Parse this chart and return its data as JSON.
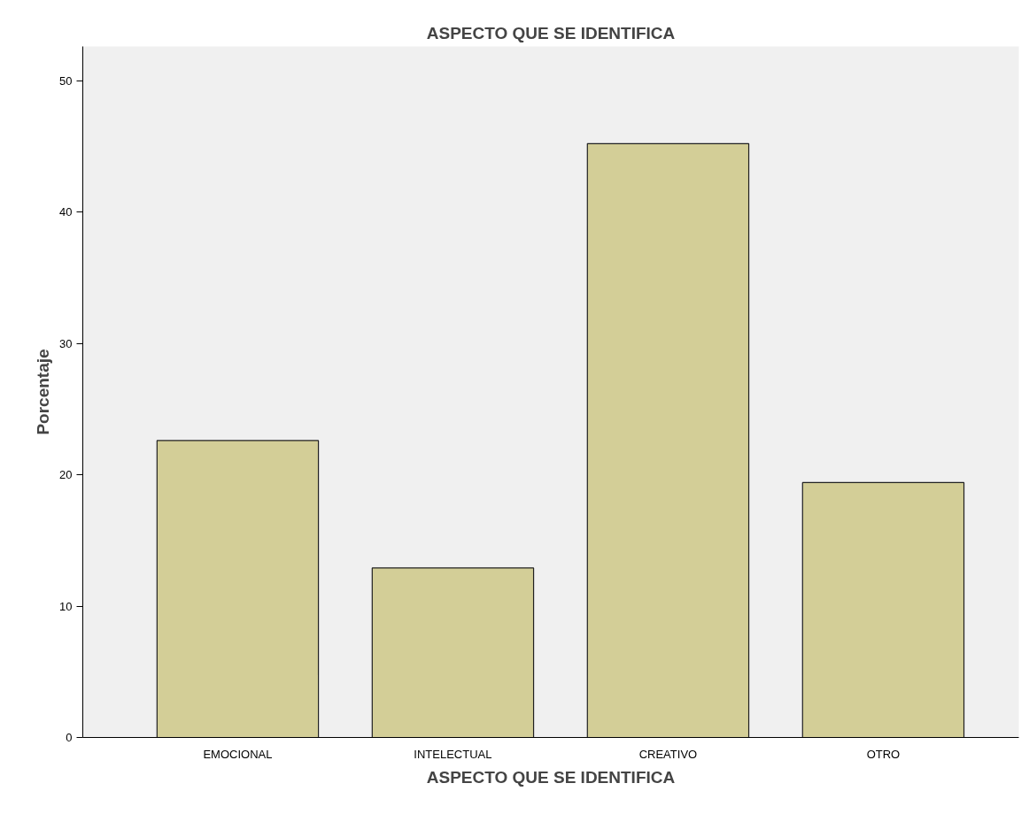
{
  "chart_data": {
    "type": "bar",
    "title": "ASPECTO QUE SE IDENTIFICA",
    "xlabel": "ASPECTO QUE SE IDENTIFICA",
    "ylabel": "Porcentaje",
    "categories": [
      "EMOCIONAL",
      "INTELECTUAL",
      "CREATIVO",
      "OTRO"
    ],
    "values": [
      22.6,
      12.9,
      45.2,
      19.4
    ],
    "color": "#d3ce97",
    "ylim": [
      0,
      52.6
    ],
    "yticks": [
      0,
      10,
      20,
      30,
      40,
      50
    ],
    "grid": false
  }
}
